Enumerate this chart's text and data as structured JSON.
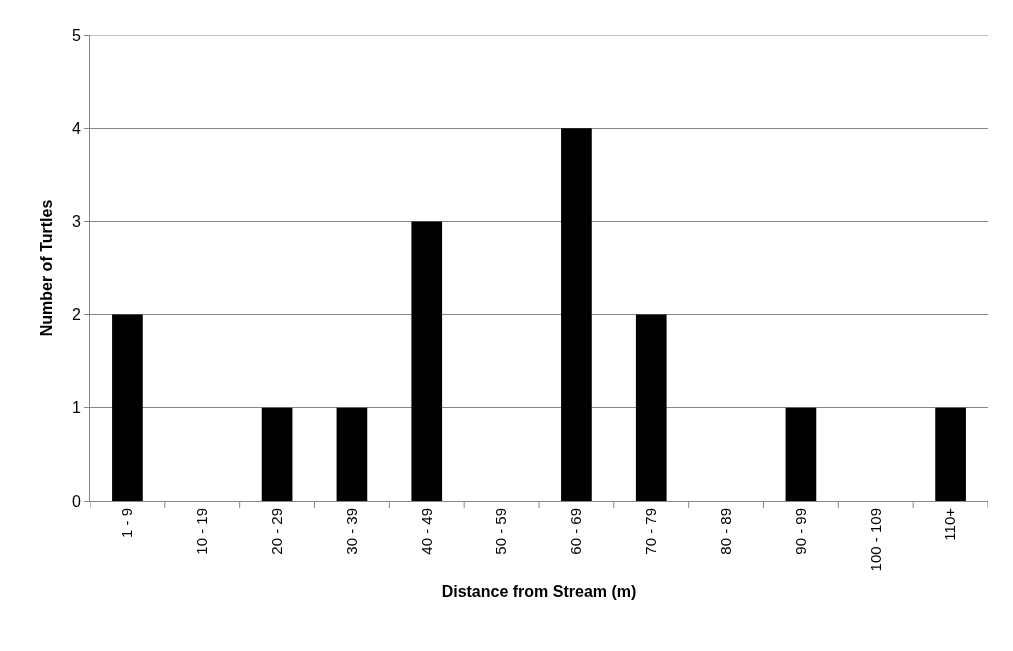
{
  "chart_data": {
    "type": "bar",
    "xlabel": "Distance from Stream (m)",
    "ylabel": "Number of Turtles",
    "categories": [
      "1 - 9",
      "10 - 19",
      "20 - 29",
      "30 - 39",
      "40 - 49",
      "50 - 59",
      "60 - 69",
      "70 - 79",
      "80 - 89",
      "90 - 99",
      "100 - 109",
      "110+"
    ],
    "values": [
      2,
      0,
      1,
      1,
      3,
      0,
      4,
      2,
      0,
      1,
      0,
      1
    ],
    "color": "#000000",
    "ylim": [
      0,
      5
    ],
    "yticks": [
      0,
      1,
      2,
      3,
      4,
      5
    ],
    "grid": "y",
    "legend": false
  }
}
